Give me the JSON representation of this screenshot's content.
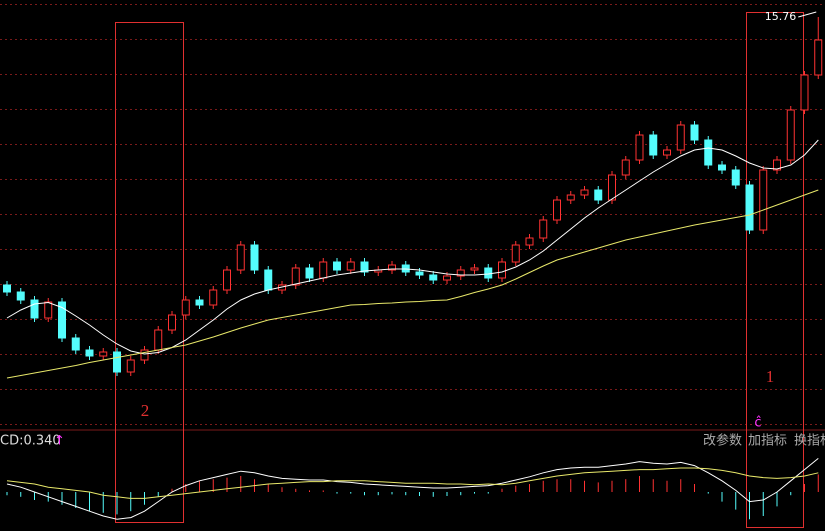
{
  "chart_data": {
    "type": "candlestick",
    "ylim": [
      7.5,
      16.0
    ],
    "grid": true,
    "up_color": "#ff3232",
    "down_color": "#54fcfc",
    "ohlc": [
      [
        10.4,
        10.48,
        10.18,
        10.26
      ],
      [
        10.26,
        10.34,
        10.02,
        10.1
      ],
      [
        10.1,
        10.18,
        9.66,
        9.74
      ],
      [
        9.74,
        10.14,
        9.66,
        10.06
      ],
      [
        10.06,
        10.14,
        9.26,
        9.34
      ],
      [
        9.34,
        9.42,
        9.02,
        9.1
      ],
      [
        9.1,
        9.18,
        8.9,
        8.98
      ],
      [
        8.98,
        9.14,
        8.9,
        9.06
      ],
      [
        9.06,
        9.14,
        8.58,
        8.66
      ],
      [
        8.66,
        8.98,
        8.58,
        8.9
      ],
      [
        8.9,
        9.18,
        8.82,
        9.1
      ],
      [
        9.1,
        9.58,
        9.02,
        9.5
      ],
      [
        9.5,
        9.88,
        9.42,
        9.8
      ],
      [
        9.8,
        10.18,
        9.72,
        10.1
      ],
      [
        10.1,
        10.18,
        9.92,
        10.0
      ],
      [
        10.0,
        10.38,
        9.92,
        10.3
      ],
      [
        10.3,
        10.78,
        10.22,
        10.7
      ],
      [
        10.7,
        11.28,
        10.62,
        11.2
      ],
      [
        11.2,
        11.28,
        10.62,
        10.7
      ],
      [
        10.7,
        10.78,
        10.22,
        10.3
      ],
      [
        10.3,
        10.48,
        10.22,
        10.4
      ],
      [
        10.4,
        10.82,
        10.32,
        10.74
      ],
      [
        10.74,
        10.82,
        10.46,
        10.54
      ],
      [
        10.54,
        10.94,
        10.46,
        10.86
      ],
      [
        10.86,
        10.94,
        10.62,
        10.7
      ],
      [
        10.7,
        10.94,
        10.62,
        10.86
      ],
      [
        10.86,
        10.94,
        10.58,
        10.66
      ],
      [
        10.66,
        10.78,
        10.58,
        10.7
      ],
      [
        10.7,
        10.88,
        10.62,
        10.8
      ],
      [
        10.8,
        10.88,
        10.58,
        10.66
      ],
      [
        10.66,
        10.74,
        10.52,
        10.6
      ],
      [
        10.6,
        10.68,
        10.42,
        10.5
      ],
      [
        10.5,
        10.66,
        10.42,
        10.58
      ],
      [
        10.58,
        10.78,
        10.5,
        10.7
      ],
      [
        10.7,
        10.82,
        10.62,
        10.74
      ],
      [
        10.74,
        10.82,
        10.46,
        10.54
      ],
      [
        10.54,
        10.94,
        10.46,
        10.86
      ],
      [
        10.86,
        11.28,
        10.78,
        11.2
      ],
      [
        11.2,
        11.42,
        11.12,
        11.34
      ],
      [
        11.34,
        11.78,
        11.26,
        11.7
      ],
      [
        11.7,
        12.18,
        11.62,
        12.1
      ],
      [
        12.1,
        12.28,
        12.02,
        12.2
      ],
      [
        12.2,
        12.38,
        12.12,
        12.3
      ],
      [
        12.3,
        12.38,
        12.02,
        12.1
      ],
      [
        12.1,
        12.68,
        12.02,
        12.6
      ],
      [
        12.6,
        12.98,
        12.52,
        12.9
      ],
      [
        12.9,
        13.48,
        12.82,
        13.4
      ],
      [
        13.4,
        13.48,
        12.92,
        13.0
      ],
      [
        13.0,
        13.18,
        12.92,
        13.1
      ],
      [
        13.1,
        13.68,
        13.02,
        13.6
      ],
      [
        13.6,
        13.68,
        13.22,
        13.3
      ],
      [
        13.3,
        13.38,
        12.72,
        12.8
      ],
      [
        12.8,
        12.88,
        12.62,
        12.7
      ],
      [
        12.7,
        12.78,
        12.32,
        12.4
      ],
      [
        12.4,
        12.48,
        11.42,
        11.5
      ],
      [
        11.5,
        12.78,
        11.42,
        12.7
      ],
      [
        12.7,
        12.98,
        12.62,
        12.9
      ],
      [
        12.9,
        13.98,
        12.82,
        13.9
      ],
      [
        13.9,
        14.68,
        13.82,
        14.6
      ],
      [
        14.6,
        15.76,
        14.52,
        15.3
      ]
    ],
    "ma": [
      {
        "color": "#ffffff",
        "values": [
          9.74,
          9.9,
          10.02,
          10.05,
          9.95,
          9.78,
          9.6,
          9.4,
          9.22,
          9.08,
          9.02,
          9.05,
          9.15,
          9.3,
          9.5,
          9.7,
          9.92,
          10.1,
          10.22,
          10.3,
          10.36,
          10.42,
          10.48,
          10.54,
          10.6,
          10.64,
          10.68,
          10.7,
          10.72,
          10.72,
          10.7,
          10.66,
          10.62,
          10.6,
          10.6,
          10.62,
          10.66,
          10.76,
          10.9,
          11.08,
          11.3,
          11.52,
          11.74,
          11.94,
          12.12,
          12.3,
          12.48,
          12.66,
          12.82,
          12.98,
          13.1,
          13.14,
          13.1,
          12.98,
          12.84,
          12.74,
          12.72,
          12.8,
          13.0,
          13.3
        ]
      },
      {
        "color": "#e8e86a",
        "values": [
          8.54,
          8.59,
          8.64,
          8.69,
          8.74,
          8.79,
          8.85,
          8.9,
          8.95,
          9.0,
          9.05,
          9.1,
          9.15,
          9.2,
          9.28,
          9.36,
          9.45,
          9.54,
          9.62,
          9.7,
          9.75,
          9.8,
          9.85,
          9.9,
          9.95,
          10.0,
          10.01,
          10.03,
          10.04,
          10.06,
          10.07,
          10.09,
          10.1,
          10.17,
          10.25,
          10.32,
          10.4,
          10.52,
          10.65,
          10.78,
          10.9,
          10.98,
          11.06,
          11.14,
          11.22,
          11.3,
          11.36,
          11.42,
          11.48,
          11.54,
          11.6,
          11.65,
          11.7,
          11.75,
          11.8,
          11.9,
          12.0,
          12.1,
          12.2,
          12.3
        ]
      }
    ],
    "macd": {
      "label": "CD:0.340",
      "arrow": "↑",
      "ylim": [
        -0.45,
        0.55
      ],
      "hist": [
        -0.04,
        -0.06,
        -0.1,
        -0.12,
        -0.16,
        -0.2,
        -0.24,
        -0.26,
        -0.28,
        -0.24,
        -0.16,
        -0.06,
        0.04,
        0.1,
        0.14,
        0.16,
        0.18,
        0.2,
        0.16,
        0.1,
        0.06,
        0.04,
        0.02,
        0.02,
        -0.02,
        -0.02,
        -0.04,
        -0.04,
        -0.03,
        -0.04,
        -0.05,
        -0.06,
        -0.05,
        -0.04,
        -0.02,
        -0.02,
        0.04,
        0.08,
        0.1,
        0.14,
        0.16,
        0.16,
        0.14,
        0.12,
        0.14,
        0.16,
        0.2,
        0.16,
        0.14,
        0.16,
        0.1,
        -0.02,
        -0.12,
        -0.22,
        -0.34,
        -0.3,
        -0.18,
        -0.04,
        0.1,
        0.22
      ],
      "dif": {
        "color": "#ffffff",
        "values": [
          0.1,
          0.06,
          0.0,
          -0.06,
          -0.12,
          -0.18,
          -0.24,
          -0.3,
          -0.34,
          -0.32,
          -0.24,
          -0.12,
          0.0,
          0.08,
          0.14,
          0.18,
          0.22,
          0.26,
          0.24,
          0.2,
          0.17,
          0.16,
          0.15,
          0.15,
          0.13,
          0.12,
          0.1,
          0.09,
          0.08,
          0.07,
          0.06,
          0.05,
          0.05,
          0.06,
          0.07,
          0.08,
          0.11,
          0.15,
          0.19,
          0.24,
          0.28,
          0.3,
          0.31,
          0.31,
          0.33,
          0.35,
          0.38,
          0.36,
          0.35,
          0.37,
          0.33,
          0.24,
          0.14,
          0.02,
          -0.12,
          -0.1,
          0.0,
          0.14,
          0.28,
          0.42
        ]
      },
      "dea": {
        "color": "#e8e86a",
        "values": [
          0.14,
          0.12,
          0.1,
          0.06,
          0.04,
          0.02,
          0.0,
          -0.04,
          -0.06,
          -0.08,
          -0.08,
          -0.06,
          -0.04,
          -0.02,
          0.0,
          0.02,
          0.04,
          0.06,
          0.08,
          0.1,
          0.11,
          0.12,
          0.13,
          0.13,
          0.14,
          0.14,
          0.14,
          0.13,
          0.12,
          0.11,
          0.11,
          0.11,
          0.1,
          0.1,
          0.09,
          0.1,
          0.09,
          0.11,
          0.14,
          0.17,
          0.2,
          0.22,
          0.24,
          0.25,
          0.26,
          0.27,
          0.28,
          0.28,
          0.29,
          0.3,
          0.3,
          0.29,
          0.27,
          0.24,
          0.2,
          0.18,
          0.17,
          0.18,
          0.2,
          0.24
        ]
      }
    },
    "annotations": [
      "1",
      "2",
      "ĉ"
    ],
    "buttons": [
      "改参数",
      "加指标",
      "换指标"
    ]
  }
}
